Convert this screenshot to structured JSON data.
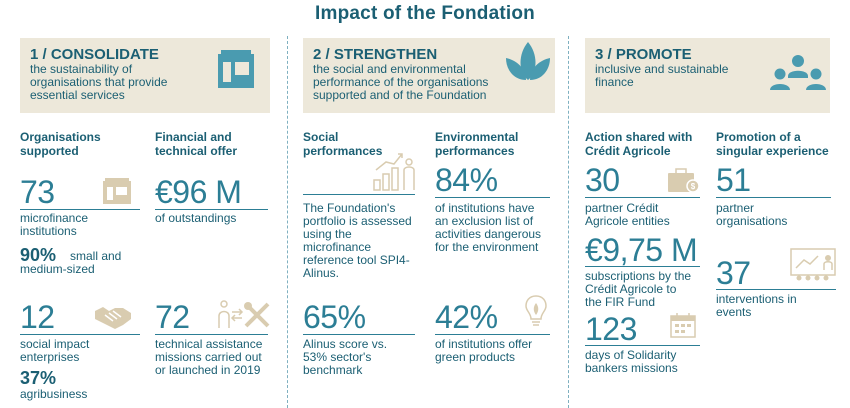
{
  "title": "Impact of the Fondation",
  "sections": [
    {
      "heading": "1 / CONSOLIDATE",
      "subtitle": "the sustainability of organisations that provide essential services",
      "icon": "building-icon"
    },
    {
      "heading": "2 / STRENGTHEN",
      "subtitle": "the social and environmental performance of the organisations supported and of the Foundation",
      "icon": "leaves-icon"
    },
    {
      "heading": "3 / PROMOTE",
      "subtitle": "inclusive and sustainable finance",
      "icon": "people-icon"
    }
  ],
  "col1": {
    "label": "Organisations supported",
    "value_73": "73",
    "text_73": "microfinance institutions",
    "pct_90": "90%",
    "text_90": "small and medium-sized",
    "value_12": "12",
    "text_12": "social impact enterprises",
    "pct_37": "37%",
    "text_37": "agribusiness"
  },
  "col2": {
    "label": "Financial and technical offer",
    "value_96": "€96 M",
    "text_96": "of outstandings",
    "value_72": "72",
    "text_72": "technical assistance missions carried out or launched in 2019"
  },
  "col3": {
    "label": "Social performances",
    "text_tool": "The Foundation's portfolio is assessed using the microfinance reference tool SPI4-Alinus.",
    "value_65": "65%",
    "text_65": "Alinus score vs. 53% sector's benchmark"
  },
  "col4": {
    "label": "Environmental performances",
    "value_84": "84%",
    "text_84": "of institutions have an exclusion list of activities dangerous for the environment",
    "value_42": "42%",
    "text_42": "of institutions offer green products"
  },
  "col5": {
    "label": "Action shared with Crédit Agricole",
    "value_30": "30",
    "text_30": "partner Crédit Agricole entities",
    "value_975": "€9,75 M",
    "text_975": "subscriptions by the Crédit Agricole to the FIR Fund",
    "value_123": "123",
    "text_123": "days of Solidarity bankers missions"
  },
  "col6": {
    "label": "Promotion of a singular experience",
    "value_51": "51",
    "text_51": "partner organisations",
    "value_37": "37",
    "text_37": "interventions in events"
  },
  "colors": {
    "primary": "#1b5f73",
    "accent": "#2c7e95",
    "icon": "#4a9bb0",
    "beige": "#ede8da",
    "icon_beige": "#d9ccb0"
  }
}
